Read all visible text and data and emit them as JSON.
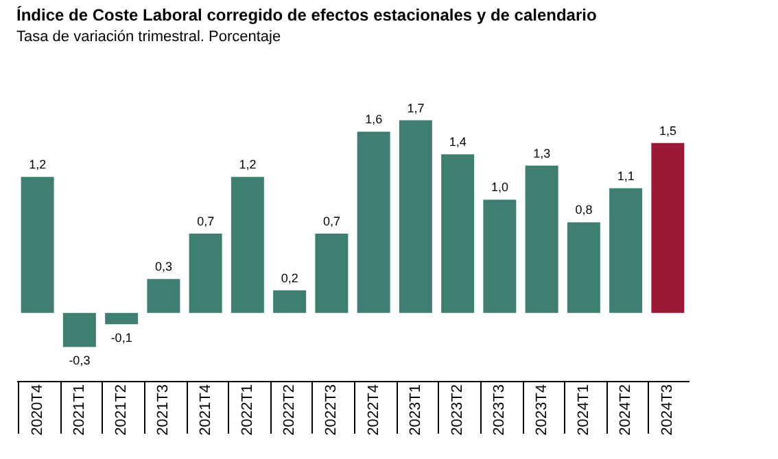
{
  "chart_data": {
    "type": "bar",
    "title": "Índice de Coste Laboral corregido de efectos estacionales y de calendario",
    "subtitle": "Tasa de variación trimestral. Porcentaje",
    "categories": [
      "2020T4",
      "2021T1",
      "2021T2",
      "2021T3",
      "2021T4",
      "2022T1",
      "2022T2",
      "2022T3",
      "2022T4",
      "2023T1",
      "2023T2",
      "2023T3",
      "2023T4",
      "2024T1",
      "2024T2",
      "2024T3"
    ],
    "values": [
      1.2,
      -0.3,
      -0.1,
      0.3,
      0.7,
      1.2,
      0.2,
      0.7,
      1.6,
      1.7,
      1.4,
      1.0,
      1.3,
      0.8,
      1.1,
      1.5
    ],
    "value_labels": [
      "1,2",
      "-0,3",
      "-0,1",
      "0,3",
      "0,7",
      "1,2",
      "0,2",
      "0,7",
      "1,6",
      "1,7",
      "1,4",
      "1,0",
      "1,3",
      "0,8",
      "1,1",
      "1,5"
    ],
    "colors": [
      "#3e7f72",
      "#3e7f72",
      "#3e7f72",
      "#3e7f72",
      "#3e7f72",
      "#3e7f72",
      "#3e7f72",
      "#3e7f72",
      "#3e7f72",
      "#3e7f72",
      "#3e7f72",
      "#3e7f72",
      "#3e7f72",
      "#3e7f72",
      "#3e7f72",
      "#9b1836"
    ],
    "grid": false
  }
}
